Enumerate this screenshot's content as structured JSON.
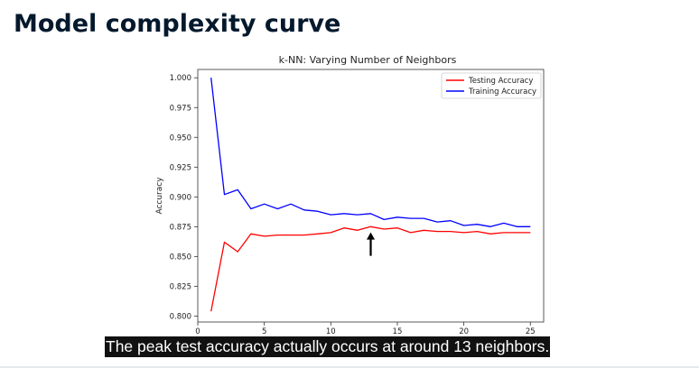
{
  "slide": {
    "title": "Model complexity curve",
    "caption": "The peak test accuracy actually occurs at around 13 neighbors."
  },
  "colors": {
    "title": "#05192d",
    "testing": "#ff0000",
    "training": "#0000ff",
    "caption_bg": "#111111",
    "caption_text": "#ffffff"
  },
  "chart_data": {
    "type": "line",
    "title": "k-NN: Varying Number of Neighbors",
    "xlabel": "",
    "ylabel": "Accuracy",
    "xlim": [
      0,
      26
    ],
    "ylim": [
      0.795,
      1.007
    ],
    "xticks": [
      0,
      5,
      10,
      15,
      20,
      25
    ],
    "yticks": [
      0.8,
      0.825,
      0.85,
      0.875,
      0.9,
      0.925,
      0.95,
      0.975,
      1.0
    ],
    "ytick_labels": [
      "0.800",
      "0.825",
      "0.850",
      "0.875",
      "0.900",
      "0.925",
      "0.950",
      "0.975",
      "1.000"
    ],
    "grid": false,
    "legend_position": "top-right",
    "x": [
      1,
      2,
      3,
      4,
      5,
      6,
      7,
      8,
      9,
      10,
      11,
      12,
      13,
      14,
      15,
      16,
      17,
      18,
      19,
      20,
      21,
      22,
      23,
      24,
      25
    ],
    "series": [
      {
        "name": "Testing Accuracy",
        "color": "#ff0000",
        "values": [
          0.804,
          0.862,
          0.854,
          0.869,
          0.867,
          0.868,
          0.868,
          0.868,
          0.869,
          0.87,
          0.874,
          0.872,
          0.875,
          0.873,
          0.874,
          0.87,
          0.872,
          0.871,
          0.871,
          0.87,
          0.871,
          0.869,
          0.87,
          0.87,
          0.87
        ]
      },
      {
        "name": "Training Accuracy",
        "color": "#0000ff",
        "values": [
          1.0,
          0.902,
          0.906,
          0.89,
          0.894,
          0.89,
          0.894,
          0.889,
          0.888,
          0.885,
          0.886,
          0.885,
          0.886,
          0.881,
          0.883,
          0.882,
          0.882,
          0.879,
          0.88,
          0.876,
          0.877,
          0.875,
          0.878,
          0.875,
          0.875
        ]
      }
    ],
    "annotation": {
      "type": "arrow",
      "x": 13,
      "points_to_y": 0.874
    }
  }
}
